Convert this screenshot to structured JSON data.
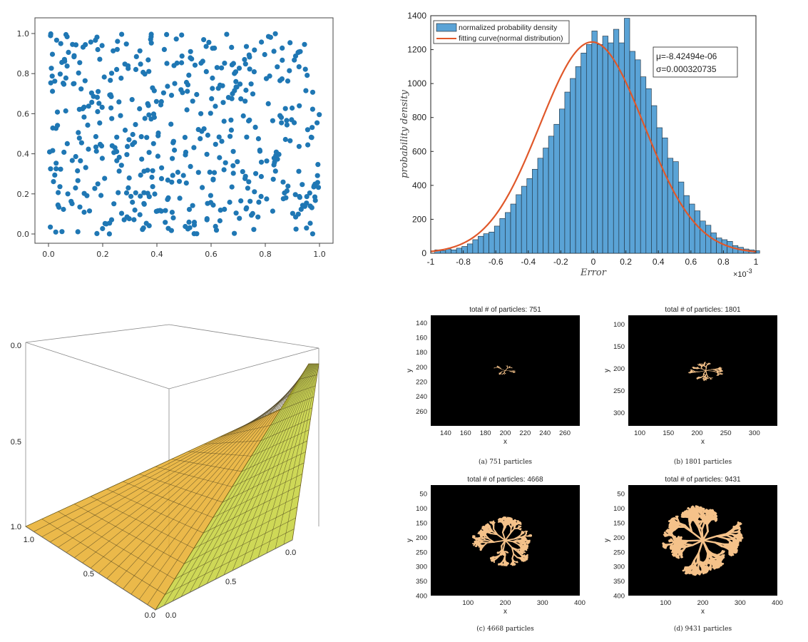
{
  "colors": {
    "scatter_point": "#1f77b4",
    "histogram_bar": "#5aa3d6",
    "fit_curve": "#e0582a",
    "surface_orange": "#e8ad2a",
    "surface_yellow": "#c6d13a",
    "cluster": "#f5c28a",
    "dla_background": "#000000"
  },
  "chart_data": [
    {
      "type": "scatter",
      "xlim": [
        0,
        1
      ],
      "ylim": [
        0,
        1
      ],
      "x_ticks": [
        "0.0",
        "0.2",
        "0.4",
        "0.6",
        "0.8",
        "1.0"
      ],
      "y_ticks": [
        "0.0",
        "0.2",
        "0.4",
        "0.6",
        "0.8",
        "1.0"
      ],
      "point_count_estimate": 500,
      "grid": false
    },
    {
      "type": "bar",
      "subtype": "histogram_with_fit",
      "xlabel": "Error",
      "ylabel": "probability density",
      "x_multiplier": "×10",
      "x_multiplier_exp": "-3",
      "xlim": [
        -1,
        1
      ],
      "ylim": [
        0,
        1400
      ],
      "x_ticks": [
        "-1",
        "-0.8",
        "-0.6",
        "-0.4",
        "-0.2",
        "0",
        "0.2",
        "0.4",
        "0.6",
        "0.8",
        "1"
      ],
      "y_ticks": [
        "0",
        "200",
        "400",
        "600",
        "800",
        "1000",
        "1200",
        "1400"
      ],
      "legend": {
        "position": "top-left",
        "entries": [
          "normalized probability density",
          "fitting curve(normal distribution)"
        ]
      },
      "annotation": {
        "mu": "μ=-8.42494e-06",
        "sigma": "σ=0.000320735"
      },
      "bin_start": -0.975,
      "bin_width": 0.0333,
      "values": [
        20,
        15,
        25,
        20,
        30,
        40,
        55,
        80,
        100,
        115,
        125,
        160,
        205,
        240,
        290,
        345,
        395,
        440,
        495,
        560,
        620,
        690,
        760,
        850,
        950,
        1030,
        1100,
        1180,
        1230,
        1310,
        1230,
        1280,
        1240,
        1320,
        1240,
        1385,
        1190,
        1140,
        1040,
        970,
        870,
        740,
        680,
        560,
        540,
        420,
        340,
        290,
        250,
        190,
        165,
        120,
        90,
        80,
        70,
        45,
        35,
        25,
        20,
        15
      ]
    },
    {
      "type": "surface3d",
      "ticks_left_axis": [
        "0.0",
        "0.5",
        "1.0"
      ],
      "ticks_front_left": [
        "1.0",
        "0.5",
        "0.0"
      ],
      "ticks_front_right": [
        "0.0",
        "0.5",
        "0.0"
      ]
    },
    {
      "type": "image_grid",
      "panels": [
        {
          "title": "total # of particles: 751",
          "caption": "(a) 751 particles",
          "particles": 751,
          "xlabel": "x",
          "ylabel": "y",
          "x_ticks": [
            "140",
            "160",
            "180",
            "200",
            "220",
            "240",
            "260"
          ],
          "y_ticks": [
            "140",
            "160",
            "180",
            "200",
            "220",
            "240",
            "260"
          ]
        },
        {
          "title": "total # of particles: 1801",
          "caption": "(b) 1801 particles",
          "particles": 1801,
          "xlabel": "x",
          "ylabel": "y",
          "x_ticks": [
            "100",
            "150",
            "200",
            "250",
            "300"
          ],
          "y_ticks": [
            "100",
            "150",
            "200",
            "250",
            "300"
          ]
        },
        {
          "title": "total # of particles: 4668",
          "caption": "(c) 4668 particles",
          "particles": 4668,
          "xlabel": "x",
          "ylabel": "y",
          "x_ticks": [
            "100",
            "200",
            "300",
            "400"
          ],
          "y_ticks": [
            "50",
            "100",
            "150",
            "200",
            "250",
            "300",
            "350",
            "400"
          ]
        },
        {
          "title": "total # of particles: 9431",
          "caption": "(d) 9431 particles",
          "particles": 9431,
          "xlabel": "x",
          "ylabel": "y",
          "x_ticks": [
            "100",
            "200",
            "300",
            "400"
          ],
          "y_ticks": [
            "50",
            "100",
            "150",
            "200",
            "250",
            "300",
            "350",
            "400"
          ]
        }
      ]
    }
  ]
}
